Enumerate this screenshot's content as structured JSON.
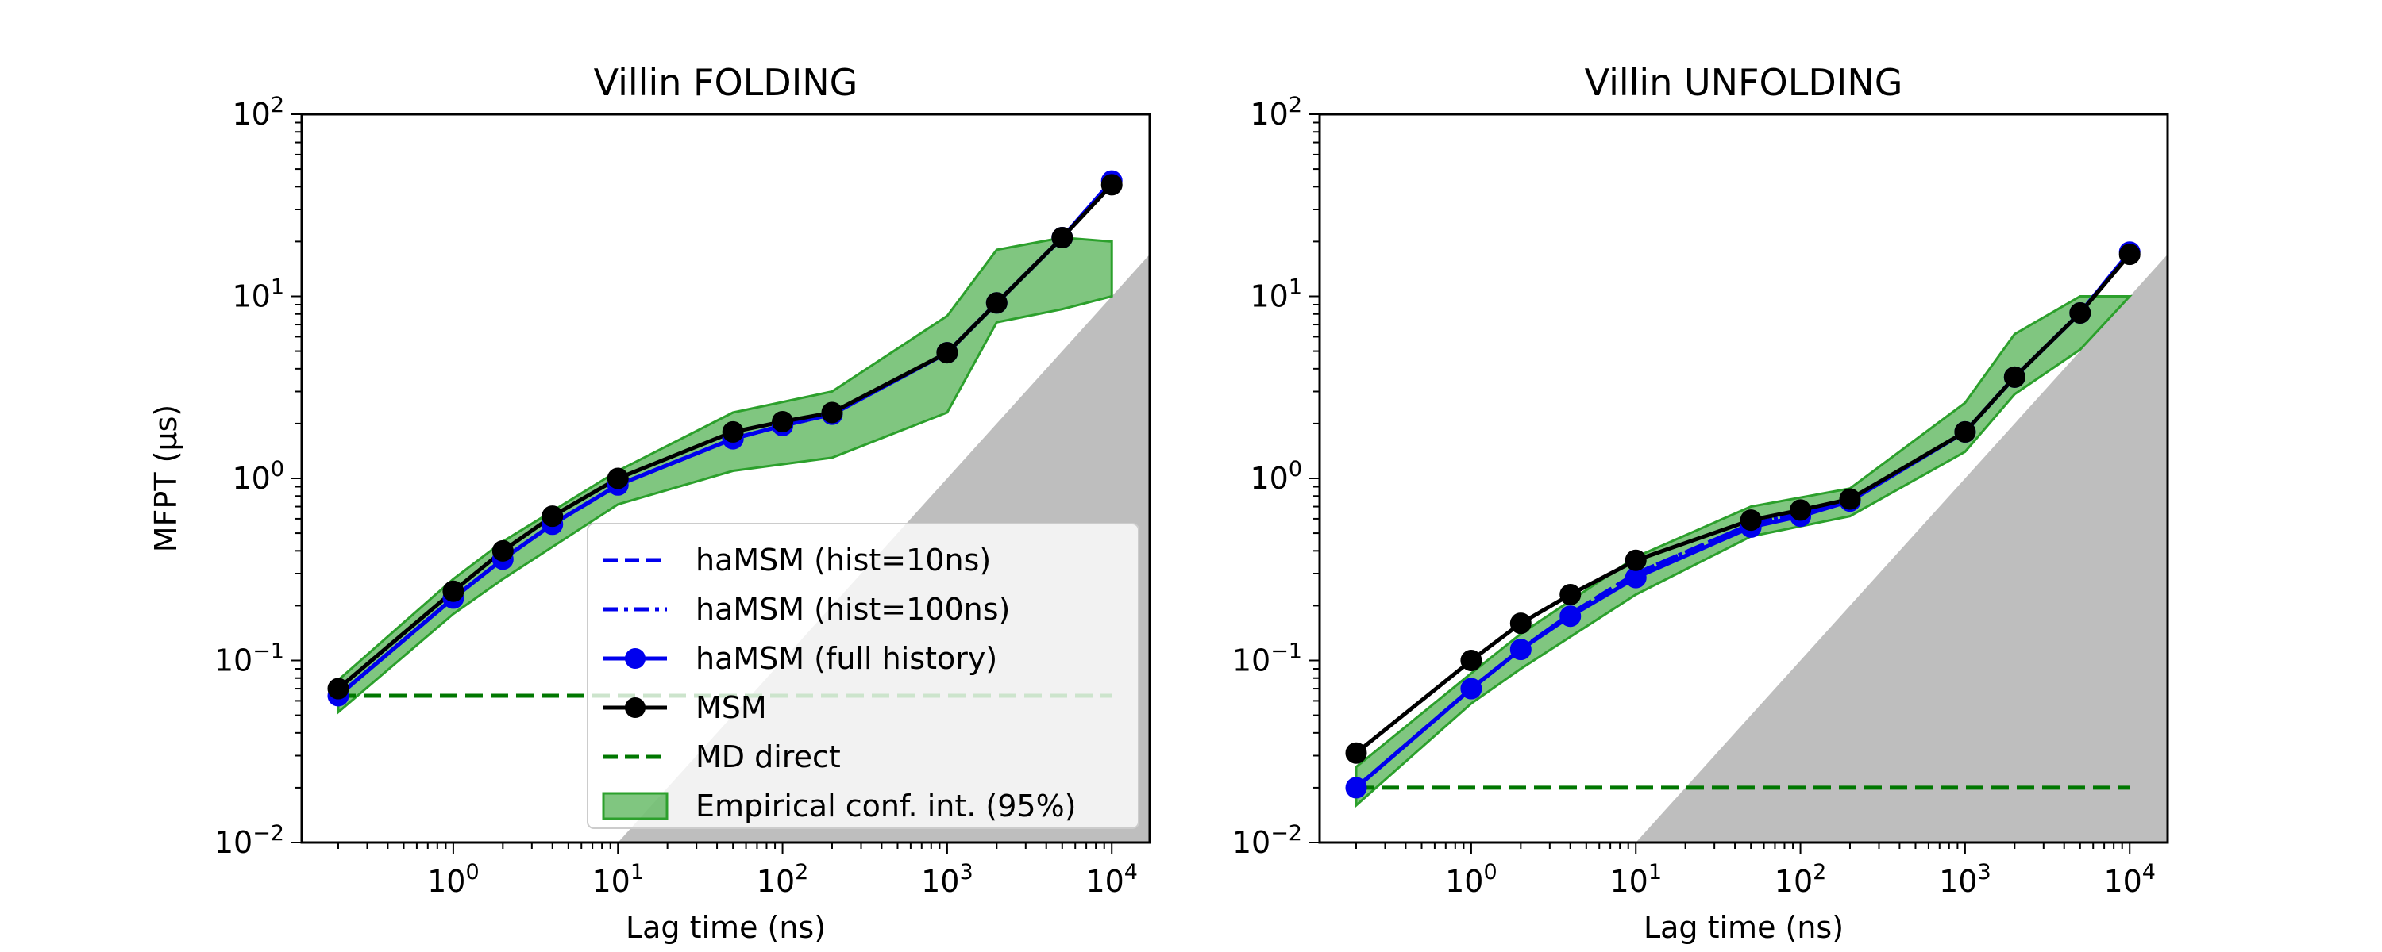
{
  "chart_data": [
    {
      "type": "line",
      "title": "Villin FOLDING",
      "xlabel": "Lag time (ns)",
      "ylabel": "MFPT (μs)",
      "xscale": "log",
      "yscale": "log",
      "xlim": [
        0.12,
        17000
      ],
      "ylim": [
        0.01,
        100
      ],
      "xticks": [
        {
          "base": "10",
          "exp": "0"
        },
        {
          "base": "10",
          "exp": "1"
        },
        {
          "base": "10",
          "exp": "2"
        },
        {
          "base": "10",
          "exp": "3"
        },
        {
          "base": "10",
          "exp": "4"
        }
      ],
      "yticks": [
        {
          "base": "10",
          "exp": "−2"
        },
        {
          "base": "10",
          "exp": "−1"
        },
        {
          "base": "10",
          "exp": "0"
        },
        {
          "base": "10",
          "exp": "1"
        },
        {
          "base": "10",
          "exp": "2"
        }
      ],
      "x": [
        0.2,
        1,
        2,
        4,
        10,
        50,
        100,
        200,
        1000,
        2000,
        5000,
        10000
      ],
      "series": [
        {
          "name": "haMSM (hist=10ns)",
          "style": "dashed",
          "color": "#0000ee",
          "y": [
            0.064,
            0.22,
            0.36,
            0.56,
            0.92,
            1.65,
            1.95,
            2.25,
            4.9,
            9.2,
            21,
            43
          ]
        },
        {
          "name": "haMSM (hist=100ns)",
          "style": "dashdot",
          "color": "#0000ee",
          "y": [
            0.064,
            0.22,
            0.36,
            0.56,
            0.92,
            1.65,
            1.95,
            2.25,
            4.9,
            9.2,
            21,
            43
          ]
        },
        {
          "name": "haMSM (full history)",
          "style": "markers",
          "color": "#0000ee",
          "y": [
            0.064,
            0.22,
            0.36,
            0.56,
            0.92,
            1.65,
            1.95,
            2.25,
            4.9,
            9.2,
            21,
            43
          ]
        },
        {
          "name": "MSM",
          "style": "markers",
          "color": "#000000",
          "y": [
            0.07,
            0.24,
            0.4,
            0.62,
            1.0,
            1.8,
            2.05,
            2.3,
            4.9,
            9.2,
            21,
            41
          ]
        },
        {
          "name": "MD direct",
          "style": "dashed",
          "color": "#007700",
          "x": [
            0.2,
            10000
          ],
          "y": [
            0.064,
            0.064
          ]
        },
        {
          "name": "Empirical conf. int. (95%)",
          "style": "band",
          "color": "#2ca02c",
          "x": [
            0.2,
            1,
            2,
            10,
            50,
            200,
            1000,
            2000,
            5000,
            10000
          ],
          "lower": [
            0.052,
            0.18,
            0.28,
            0.72,
            1.1,
            1.3,
            2.3,
            7.2,
            8.5,
            10
          ],
          "upper": [
            0.078,
            0.28,
            0.45,
            1.1,
            2.3,
            3.0,
            7.8,
            18,
            21,
            20
          ]
        }
      ],
      "excluded_region": {
        "color": "#bebebe",
        "boundary": "MFPT = lag time"
      },
      "legend": "lower-right"
    },
    {
      "type": "line",
      "title": "Villin UNFOLDING",
      "xlabel": "Lag time (ns)",
      "ylabel": "",
      "xscale": "log",
      "yscale": "log",
      "xlim": [
        0.12,
        17000
      ],
      "ylim": [
        0.01,
        100
      ],
      "xticks": [
        {
          "base": "10",
          "exp": "0"
        },
        {
          "base": "10",
          "exp": "1"
        },
        {
          "base": "10",
          "exp": "2"
        },
        {
          "base": "10",
          "exp": "3"
        },
        {
          "base": "10",
          "exp": "4"
        }
      ],
      "yticks": [
        {
          "base": "10",
          "exp": "−2"
        },
        {
          "base": "10",
          "exp": "−1"
        },
        {
          "base": "10",
          "exp": "0"
        },
        {
          "base": "10",
          "exp": "1"
        },
        {
          "base": "10",
          "exp": "2"
        }
      ],
      "x": [
        0.2,
        1,
        2,
        4,
        10,
        50,
        100,
        200,
        1000,
        2000,
        5000,
        10000
      ],
      "series": [
        {
          "name": "haMSM (hist=10ns)",
          "style": "dashed",
          "color": "#0000ee",
          "y": [
            0.02,
            0.07,
            0.115,
            0.18,
            0.3,
            0.56,
            0.64,
            0.76,
            1.8,
            3.6,
            8.1,
            17.5
          ]
        },
        {
          "name": "haMSM (hist=100ns)",
          "style": "dashdot",
          "color": "#0000ee",
          "y": [
            0.02,
            0.07,
            0.115,
            0.18,
            0.3,
            0.56,
            0.64,
            0.76,
            1.8,
            3.6,
            8.1,
            17.5
          ]
        },
        {
          "name": "haMSM (full history)",
          "style": "markers",
          "color": "#0000ee",
          "y": [
            0.02,
            0.07,
            0.115,
            0.175,
            0.285,
            0.54,
            0.62,
            0.75,
            1.8,
            3.6,
            8.1,
            17.5
          ]
        },
        {
          "name": "MSM",
          "style": "markers",
          "color": "#000000",
          "y": [
            0.031,
            0.1,
            0.16,
            0.23,
            0.355,
            0.59,
            0.67,
            0.77,
            1.8,
            3.6,
            8.1,
            17
          ]
        },
        {
          "name": "MD direct",
          "style": "dashed",
          "color": "#007700",
          "x": [
            0.2,
            10000
          ],
          "y": [
            0.02,
            0.02
          ]
        },
        {
          "name": "Empirical conf. int. (95%)",
          "style": "band",
          "color": "#2ca02c",
          "x": [
            0.2,
            1,
            2,
            10,
            50,
            200,
            1000,
            2000,
            5000,
            10000
          ],
          "lower": [
            0.016,
            0.058,
            0.09,
            0.23,
            0.48,
            0.62,
            1.4,
            2.9,
            5.1,
            10
          ],
          "upper": [
            0.026,
            0.085,
            0.14,
            0.37,
            0.7,
            0.88,
            2.6,
            6.2,
            10,
            10
          ]
        }
      ],
      "excluded_region": {
        "color": "#bebebe",
        "boundary": "MFPT = lag time"
      }
    }
  ]
}
